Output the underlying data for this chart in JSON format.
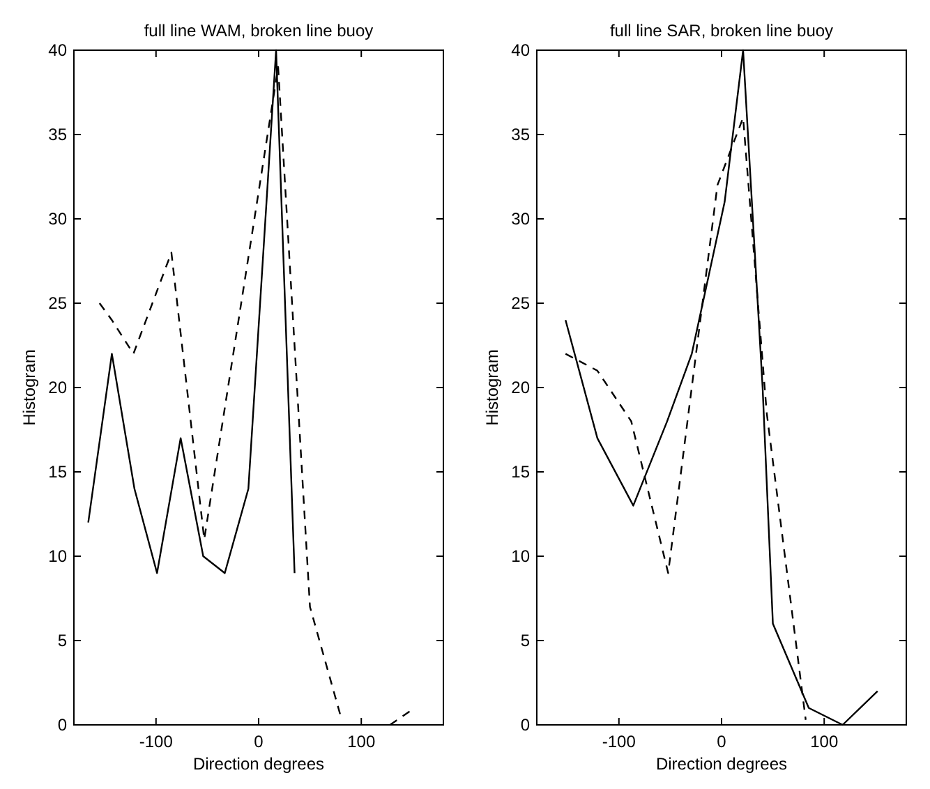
{
  "chart_data": [
    {
      "type": "line",
      "title": "full line WAM, broken line buoy",
      "xlabel": "Direction degrees",
      "ylabel": "Histogram",
      "xlim": [
        -180,
        180
      ],
      "ylim": [
        0,
        40
      ],
      "xticks": [
        -100,
        0,
        100
      ],
      "yticks": [
        0,
        5,
        10,
        15,
        20,
        25,
        30,
        35,
        40
      ],
      "grid": false,
      "marker": "none",
      "series": [
        {
          "color": "#000000",
          "line_style": "solid",
          "x": [
            -166,
            -143,
            -121,
            -99,
            -76,
            -54,
            -33,
            -10,
            17,
            35
          ],
          "values": [
            12,
            22,
            14,
            9,
            17,
            10,
            9,
            14,
            40,
            9
          ]
        },
        {
          "color": "#000000",
          "line_style": "dashed",
          "x": [
            -155,
            -143,
            -122,
            -85,
            -53,
            19,
            50,
            80,
            100,
            128,
            152
          ],
          "values": [
            25,
            24,
            22,
            28,
            11,
            39,
            7,
            0.5,
            null,
            0,
            1
          ]
        }
      ]
    },
    {
      "type": "line",
      "title": "full line SAR, broken line buoy",
      "xlabel": "Direction degrees",
      "ylabel": "Histogram",
      "xlim": [
        -180,
        180
      ],
      "ylim": [
        0,
        40
      ],
      "xticks": [
        -100,
        0,
        100
      ],
      "yticks": [
        0,
        5,
        10,
        15,
        20,
        25,
        30,
        35,
        40
      ],
      "grid": false,
      "marker": "none",
      "series": [
        {
          "color": "#000000",
          "line_style": "solid",
          "x": [
            -152,
            -121,
            -86,
            -53,
            -29,
            3,
            21,
            40,
            50,
            85,
            118,
            152
          ],
          "values": [
            24,
            17,
            13,
            18,
            22,
            31,
            40,
            20,
            6,
            1,
            0,
            2
          ]
        },
        {
          "color": "#000000",
          "line_style": "dashed",
          "x": [
            -152,
            -121,
            -88,
            -52,
            -4,
            21,
            44,
            82
          ],
          "values": [
            22,
            21,
            18,
            9,
            32,
            36,
            18.5,
            0.3
          ]
        }
      ]
    }
  ]
}
